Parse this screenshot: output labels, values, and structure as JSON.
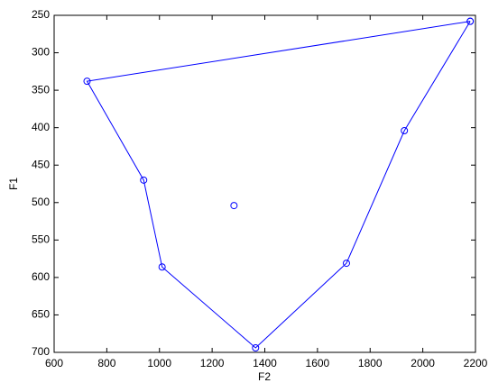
{
  "chart_data": {
    "type": "line",
    "x_label": "F2",
    "y_label": "F1",
    "xlim": [
      600,
      2200
    ],
    "xticks": [
      600,
      800,
      1000,
      1200,
      1400,
      1600,
      1800,
      2000,
      2200
    ],
    "ylim": [
      250,
      700
    ],
    "yticks": [
      250,
      300,
      350,
      400,
      450,
      500,
      550,
      600,
      650,
      700
    ],
    "y_reversed": true,
    "grid": false,
    "series": [
      {
        "color": "#0000ff",
        "line": true,
        "marker": "circle",
        "x": [
          2180,
          725,
          940,
          1010,
          1365,
          1710,
          1930,
          2180
        ],
        "values": [
          258,
          338,
          470,
          586,
          694,
          581,
          404,
          258
        ]
      },
      {
        "color": "#0000ff",
        "line": false,
        "marker": "circle",
        "x": [
          1283
        ],
        "values": [
          504
        ]
      }
    ]
  }
}
